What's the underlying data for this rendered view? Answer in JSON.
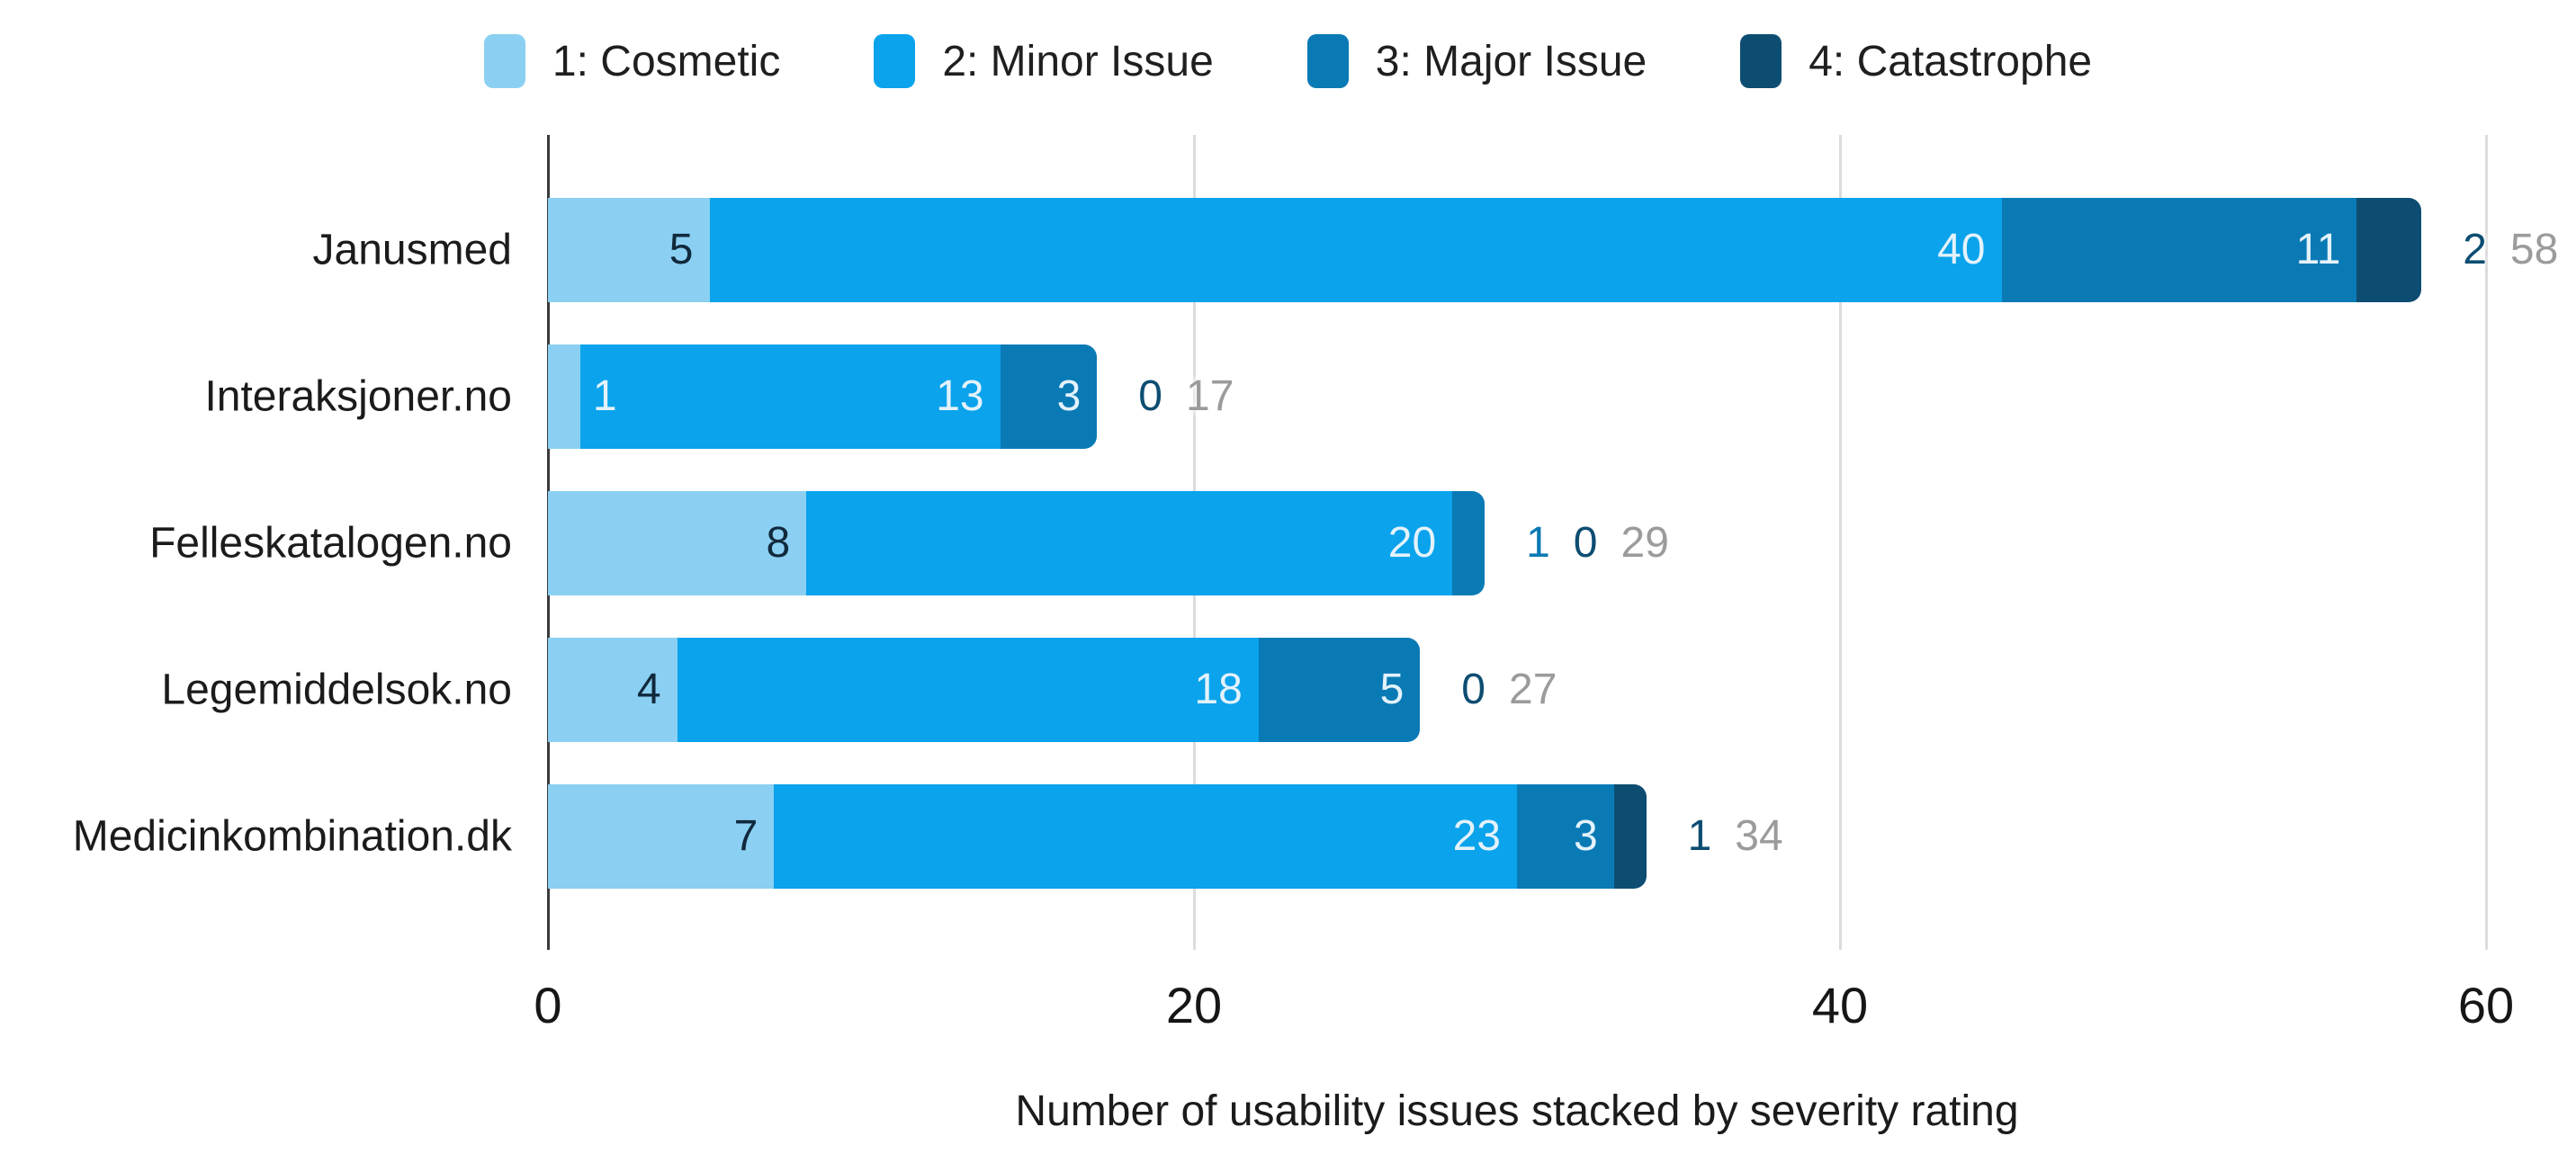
{
  "chart_data": {
    "type": "bar",
    "orientation": "horizontal",
    "stacked": true,
    "title": "",
    "xlabel": "Number of usability issues stacked by severity rating",
    "categories": [
      "Janusmed",
      "Interaksjoner.no",
      "Felleskatalogen.no",
      "Legemiddelsok.no",
      "Medicinkombination.dk"
    ],
    "series": [
      {
        "name": "1: Cosmetic",
        "color": "#8BD0F2",
        "values": [
          5,
          1,
          8,
          4,
          7
        ]
      },
      {
        "name": "2: Minor Issue",
        "color": "#0AA3EC",
        "values": [
          40,
          13,
          20,
          18,
          23
        ]
      },
      {
        "name": "3: Major Issue",
        "color": "#0A7AB5",
        "values": [
          11,
          3,
          1,
          5,
          3
        ]
      },
      {
        "name": "4: Catastrophe",
        "color": "#0D4D72",
        "values": [
          2,
          0,
          0,
          0,
          1
        ]
      }
    ],
    "totals": [
      58,
      17,
      29,
      27,
      34
    ],
    "x_ticks": [
      0,
      20,
      40,
      60
    ],
    "xlim": [
      0,
      60
    ],
    "grid": true,
    "legend_position": "top",
    "colors": {
      "total_label": "#9B9B9B",
      "label_on_light": "#11293D",
      "label_on_dark": "#E3F2FB",
      "axis_line": "#3A3A3A",
      "gridline": "#DCDCDC",
      "text": "#1B1B1B"
    }
  }
}
